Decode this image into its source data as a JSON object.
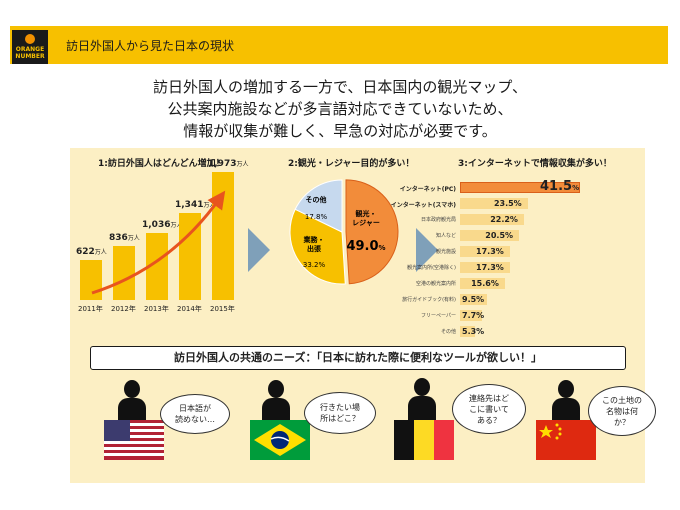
{
  "header": {
    "title": "訪日外国人から見た日本の現状",
    "logo_line1": "ORANGE",
    "logo_line2": "NUMBER"
  },
  "lead": {
    "line1": "訪日外国人の増加する一方で、日本国内の観光マップ、",
    "line2": "公共案内施設などが多言語対応できていないため、",
    "line3": "情報が収集が難しく、早急の対応が必要です。"
  },
  "section1": {
    "title": "1:訪日外国人はどんどん増加！",
    "unit": "万人",
    "bars": [
      {
        "year": "2011年",
        "value": "622",
        "num": 622
      },
      {
        "year": "2012年",
        "value": "836",
        "num": 836
      },
      {
        "year": "2013年",
        "value": "1,036",
        "num": 1036
      },
      {
        "year": "2014年",
        "value": "1,341",
        "num": 1341
      },
      {
        "year": "2015年",
        "value": "1,973",
        "num": 1973
      }
    ]
  },
  "section2": {
    "title": "2:観光・レジャー目的が多い！",
    "slices": [
      {
        "label": "観光・\nレジャー",
        "label_a": "観光・",
        "label_b": "レジャー",
        "value": "49.0",
        "num": 49.0,
        "color": "#f28c3a"
      },
      {
        "label": "業務・出張",
        "label_a": "業務・",
        "label_b": "出張",
        "value": "33.2%",
        "num": 33.2,
        "color": "#f7c000"
      },
      {
        "label": "その他",
        "value": "17.8%",
        "num": 17.8,
        "color": "#c6d9ee"
      }
    ],
    "pct": "%"
  },
  "section3": {
    "title": "3:インターネットで情報収集が多い！",
    "rows": [
      {
        "label": "インターネット(PC)",
        "value": "41.5",
        "suffix": "%",
        "num": 41.5
      },
      {
        "label": "インターネット(スマホ)",
        "value": "23.5%",
        "num": 23.5
      },
      {
        "label": "日本政府観光局",
        "value": "22.2%",
        "num": 22.2
      },
      {
        "label": "知人など",
        "value": "20.5%",
        "num": 20.5
      },
      {
        "label": "観光施設",
        "value": "17.3%",
        "num": 17.3
      },
      {
        "label": "観光案内所(空港除く)",
        "value": "17.3%",
        "num": 17.3
      },
      {
        "label": "空港の観光案内所",
        "value": "15.6%",
        "num": 15.6
      },
      {
        "label": "旅行ガイドブック(有料)",
        "value": "9.5%",
        "num": 9.5
      },
      {
        "label": "フリーペーパー",
        "value": "7.7%",
        "num": 7.7
      },
      {
        "label": "その他",
        "value": "5.3%",
        "num": 5.3
      }
    ]
  },
  "needs": "訪日外国人の共通のニーズ：「日本に訪れた際に便利なツールが欲しい！」",
  "bubbles": [
    {
      "text1": "日本語が",
      "text2": "読めない…"
    },
    {
      "text1": "行きたい場",
      "text2": "所はどこ？"
    },
    {
      "text1": "連絡先はど",
      "text2": "こに書いて",
      "text3": "ある？"
    },
    {
      "text1": "この土地の",
      "text2": "名物は何",
      "text3": "か？"
    }
  ],
  "colors": {
    "accent": "#f7c000",
    "orange": "#f28c3a",
    "panel": "#fcefc4",
    "arrow": "#7fa0b9"
  }
}
